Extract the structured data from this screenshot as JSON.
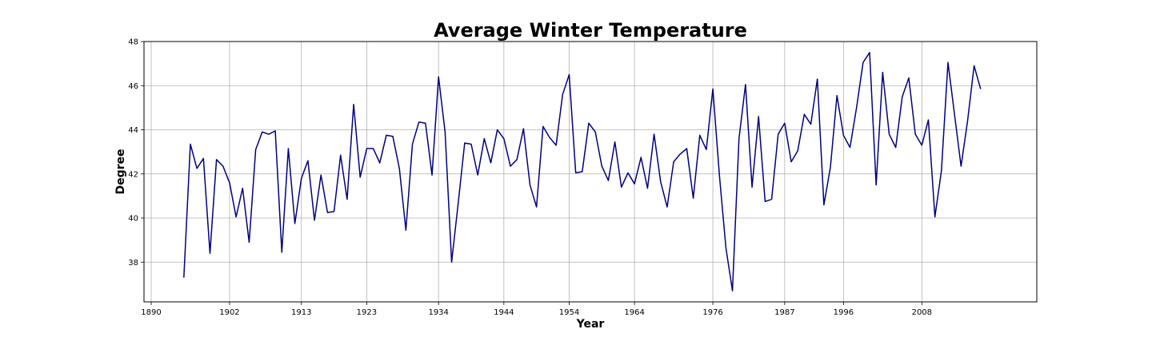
{
  "chart_data": {
    "type": "line",
    "title": "Average Winter Temperature",
    "xlabel": "Year",
    "ylabel": "Degree",
    "xlim": [
      1888.9,
      2025.6
    ],
    "ylim": [
      36.2,
      48.0
    ],
    "xticks": [
      1890,
      1902,
      1913,
      1923,
      1934,
      1944,
      1954,
      1964,
      1976,
      1987,
      1996,
      2008
    ],
    "yticks": [
      38,
      40,
      42,
      44,
      46,
      48
    ],
    "grid": true,
    "line_color": "#000080",
    "series": [
      {
        "x": [
          1895,
          1896,
          1897,
          1898,
          1899,
          1900,
          1901,
          1902,
          1903,
          1904,
          1905,
          1906,
          1907,
          1908,
          1909,
          1910,
          1911,
          1912,
          1913,
          1914,
          1915,
          1916,
          1917,
          1918,
          1919,
          1920,
          1921,
          1922,
          1923,
          1924,
          1925,
          1926,
          1927,
          1928,
          1929,
          1930,
          1931,
          1932,
          1933,
          1934,
          1935,
          1936,
          1937,
          1938,
          1939,
          1940,
          1941,
          1942,
          1943,
          1944,
          1945,
          1946,
          1947,
          1948,
          1949,
          1950,
          1951,
          1952,
          1953,
          1954,
          1955,
          1956,
          1957,
          1958,
          1959,
          1960,
          1961,
          1962,
          1963,
          1964,
          1965,
          1966,
          1967,
          1968,
          1969,
          1970,
          1971,
          1972,
          1973,
          1974,
          1975,
          1976,
          1977,
          1978,
          1979,
          1980,
          1981,
          1982,
          1983,
          1984,
          1985,
          1986,
          1987,
          1988,
          1989,
          1990,
          1991,
          1992,
          1993,
          1994,
          1995,
          1996,
          1997,
          1998,
          1999,
          2000,
          2001,
          2002,
          2003,
          2004,
          2005,
          2006,
          2007,
          2008,
          2009,
          2010,
          2011,
          2012,
          2013,
          2014,
          2015,
          2016,
          2017
        ],
        "values": [
          37.3,
          43.35,
          42.25,
          42.7,
          38.4,
          42.65,
          42.35,
          41.6,
          40.05,
          41.35,
          38.9,
          43.1,
          43.9,
          43.8,
          43.95,
          38.45,
          43.15,
          39.75,
          41.8,
          42.6,
          39.9,
          41.95,
          40.25,
          40.3,
          42.85,
          40.85,
          45.15,
          41.85,
          43.15,
          43.15,
          42.5,
          43.75,
          43.7,
          42.25,
          39.45,
          43.35,
          44.35,
          44.3,
          41.95,
          46.4,
          43.9,
          38.0,
          40.65,
          43.4,
          43.35,
          41.95,
          43.6,
          42.5,
          44.0,
          43.6,
          42.35,
          42.65,
          44.05,
          41.5,
          40.5,
          44.15,
          43.65,
          43.3,
          45.6,
          46.5,
          42.05,
          42.1,
          44.3,
          43.9,
          42.35,
          41.7,
          43.45,
          41.4,
          42.05,
          41.55,
          42.75,
          41.35,
          43.8,
          41.65,
          40.5,
          42.55,
          42.9,
          43.15,
          40.9,
          43.75,
          43.1,
          45.85,
          41.95,
          38.65,
          36.7,
          43.6,
          46.05,
          41.4,
          44.6,
          40.75,
          40.85,
          43.8,
          44.3,
          42.55,
          43.05,
          44.7,
          44.25,
          46.3,
          40.6,
          42.3,
          45.55,
          43.75,
          43.2,
          45.0,
          47.05,
          47.5,
          41.5,
          46.6,
          43.8,
          43.2,
          45.5,
          46.35,
          43.8,
          43.3,
          44.45,
          40.05,
          42.15,
          47.05,
          44.7,
          42.35,
          44.4,
          46.9,
          45.85
        ]
      }
    ]
  }
}
